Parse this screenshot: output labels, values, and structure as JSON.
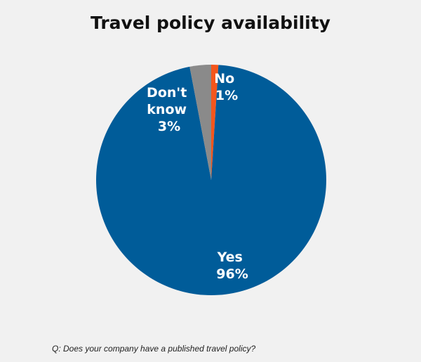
{
  "chart_data": {
    "type": "pie",
    "title": "Travel policy availability",
    "categories": [
      "Yes",
      "No",
      "Don't know"
    ],
    "values": [
      96,
      1,
      3
    ],
    "colors": [
      "#005c99",
      "#f4561c",
      "#8a8a8a"
    ],
    "labels": [
      {
        "name": "Yes",
        "value": "96%"
      },
      {
        "name": "No",
        "value": "1%"
      },
      {
        "name_lines": [
          "Don't",
          "know"
        ],
        "value": "3%"
      }
    ]
  },
  "footer": {
    "question": "Q: Does your company have a published travel policy?"
  }
}
